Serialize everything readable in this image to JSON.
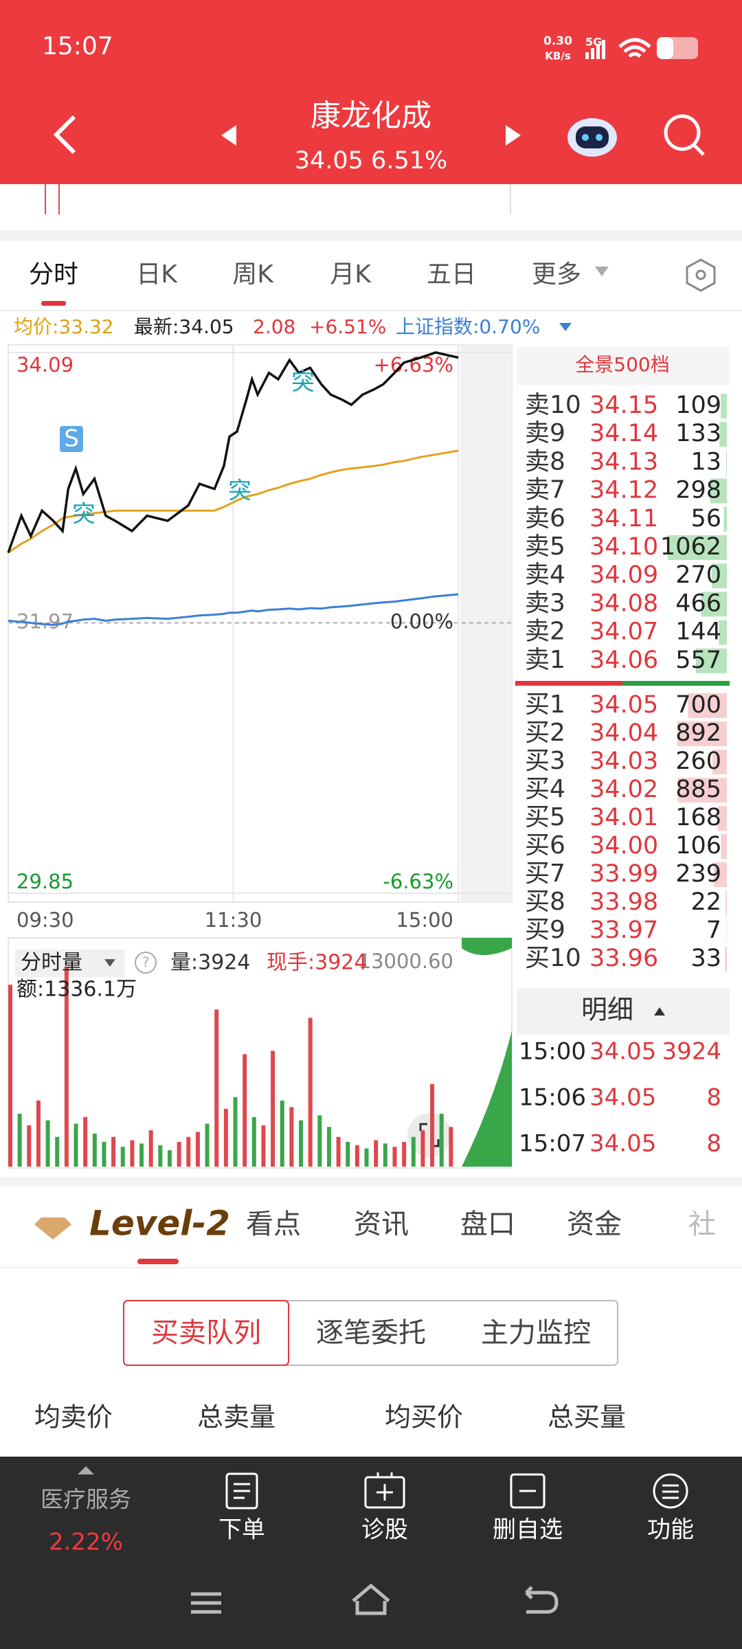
{
  "status_bar": {
    "time": "15:07",
    "speed": "0.30",
    "speed_unit": "KB/s",
    "network": "5G"
  },
  "header": {
    "title": "康龙化成",
    "quote": "34.05 6.51%"
  },
  "chart_tabs": [
    "分时",
    "日K",
    "周K",
    "月K",
    "五日",
    "更多"
  ],
  "info_bar": {
    "avg": "均价:33.32",
    "latest": "最新:34.05",
    "change": "2.08",
    "change_pct": "+6.51%",
    "index": "上证指数:0.70%"
  },
  "chart_data": [
    {
      "type": "line",
      "x": [
        0,
        7,
        12,
        18,
        24,
        29,
        32,
        36,
        40,
        46,
        52,
        57,
        66,
        74,
        85,
        96,
        102,
        110,
        115,
        118,
        122,
        127,
        130,
        133,
        139,
        144,
        150,
        155,
        161,
        167,
        172,
        178,
        183,
        189,
        195,
        200,
        206,
        211,
        220,
        228,
        240
      ],
      "series": [
        {
          "color": "#111111",
          "values": [
            32.52,
            32.81,
            32.65,
            32.85,
            32.77,
            32.69,
            33.02,
            33.18,
            32.98,
            33.1,
            32.81,
            32.77,
            32.69,
            32.81,
            32.77,
            32.89,
            33.06,
            33.02,
            33.2,
            33.43,
            33.47,
            33.72,
            33.88,
            33.76,
            33.93,
            33.88,
            34.03,
            33.93,
            33.97,
            33.84,
            33.76,
            33.72,
            33.68,
            33.76,
            33.8,
            33.84,
            33.93,
            34.01,
            34.05,
            34.09,
            34.05
          ]
        },
        {
          "color": "#e3a21a",
          "values": [
            32.52,
            32.59,
            32.63,
            32.69,
            32.74,
            32.79,
            32.8,
            32.81,
            32.82,
            32.83,
            32.84,
            32.85,
            32.85,
            32.85,
            32.85,
            32.85,
            32.85,
            32.85,
            32.88,
            32.9,
            32.93,
            32.96,
            32.97,
            32.98,
            33.01,
            33.03,
            33.06,
            33.08,
            33.1,
            33.13,
            33.15,
            33.17,
            33.18,
            33.19,
            33.2,
            33.21,
            33.23,
            33.24,
            33.27,
            33.29,
            33.32
          ]
        },
        {
          "color": "#3b7fd6",
          "axis": "y2",
          "values": [
            0.05,
            0.02,
            0.0,
            -0.03,
            -0.05,
            -0.02,
            0.03,
            0.05,
            0.08,
            0.1,
            0.05,
            0.08,
            0.1,
            0.12,
            0.1,
            0.15,
            0.18,
            0.2,
            0.22,
            0.25,
            0.25,
            0.28,
            0.3,
            0.28,
            0.32,
            0.33,
            0.35,
            0.33,
            0.36,
            0.35,
            0.38,
            0.4,
            0.42,
            0.45,
            0.48,
            0.5,
            0.52,
            0.55,
            0.6,
            0.65,
            0.7
          ]
        }
      ],
      "xlim": [
        0,
        240
      ],
      "xticks": [
        {
          "value": 0,
          "label": "09:30"
        },
        {
          "value": 120,
          "label": "11:30"
        },
        {
          "value": 240,
          "label": "15:00"
        }
      ],
      "ylim": [
        29.85,
        34.09
      ],
      "yticks": [
        34.09,
        31.97,
        29.85
      ],
      "y2lim": [
        -6.63,
        6.63
      ],
      "y2ticks": [
        {
          "value": 6.63,
          "label": "+6.63%"
        },
        {
          "value": 0,
          "label": "0.00%"
        },
        {
          "value": -6.63,
          "label": "-6.63%"
        }
      ],
      "grid": true,
      "annotations": [
        "S",
        "突",
        "突",
        "突"
      ]
    },
    {
      "type": "bar",
      "title": "分时量",
      "volume": "量:3924",
      "last": "现手:3924",
      "amount": "额:1336.1万",
      "x": [
        0,
        5,
        10,
        15,
        20,
        25,
        30,
        35,
        40,
        45,
        50,
        55,
        60,
        65,
        70,
        75,
        80,
        85,
        90,
        95,
        100,
        105,
        110,
        115,
        120,
        125,
        130,
        135,
        140,
        145,
        150,
        155,
        160,
        165,
        170,
        175,
        180,
        185,
        190,
        195,
        200,
        205,
        210,
        215,
        220,
        225,
        230,
        235
      ],
      "values": [
        11000,
        3200,
        2500,
        4000,
        2800,
        1800,
        12000,
        2600,
        3000,
        2000,
        1500,
        1800,
        1200,
        1600,
        1400,
        2200,
        1300,
        1000,
        1500,
        1800,
        2100,
        2600,
        9500,
        3500,
        4200,
        6800,
        3000,
        2500,
        7000,
        4000,
        3600,
        2800,
        9000,
        3100,
        2400,
        1800,
        1500,
        1300,
        1100,
        1600,
        1400,
        1200,
        1500,
        1800,
        2200,
        5000,
        3200,
        2400
      ],
      "colors": [
        "#e0474c",
        "#3aa64a",
        "#e0474c",
        "#e0474c",
        "#3aa64a",
        "#3aa64a",
        "#e0474c",
        "#3aa64a",
        "#e0474c",
        "#3aa64a",
        "#3aa64a",
        "#e0474c",
        "#3aa64a",
        "#e0474c",
        "#3aa64a",
        "#e0474c",
        "#3aa64a",
        "#3aa64a",
        "#e0474c",
        "#e0474c",
        "#e0474c",
        "#3aa64a",
        "#e0474c",
        "#e0474c",
        "#3aa64a",
        "#e0474c",
        "#3aa64a",
        "#e0474c",
        "#e0474c",
        "#3aa64a",
        "#e0474c",
        "#3aa64a",
        "#e0474c",
        "#3aa64a",
        "#3aa64a",
        "#e0474c",
        "#3aa64a",
        "#e0474c",
        "#3aa64a",
        "#e0474c",
        "#3aa64a",
        "#e0474c",
        "#e0474c",
        "#3aa64a",
        "#e0474c",
        "#e0474c",
        "#3aa64a",
        "#e0474c"
      ],
      "xlim": [
        0,
        240
      ],
      "ylim": [
        0,
        13000.6
      ],
      "yticks": [
        {
          "value": 13000.6,
          "label": "13000.60"
        }
      ]
    }
  ],
  "order_book": {
    "title": "全景500档",
    "asks": [
      {
        "label": "卖10",
        "price": "34.15",
        "volume": 109
      },
      {
        "label": "卖9",
        "price": "34.14",
        "volume": 133
      },
      {
        "label": "卖8",
        "price": "34.13",
        "volume": 13
      },
      {
        "label": "卖7",
        "price": "34.12",
        "volume": 298
      },
      {
        "label": "卖6",
        "price": "34.11",
        "volume": 56
      },
      {
        "label": "卖5",
        "price": "34.10",
        "volume": 1062
      },
      {
        "label": "卖4",
        "price": "34.09",
        "volume": 270
      },
      {
        "label": "卖3",
        "price": "34.08",
        "volume": 466
      },
      {
        "label": "卖2",
        "price": "34.07",
        "volume": 144
      },
      {
        "label": "卖1",
        "price": "34.06",
        "volume": 557
      }
    ],
    "bids": [
      {
        "label": "买1",
        "price": "34.05",
        "volume": 700
      },
      {
        "label": "买2",
        "price": "34.04",
        "volume": 892
      },
      {
        "label": "买3",
        "price": "34.03",
        "volume": 260
      },
      {
        "label": "买4",
        "price": "34.02",
        "volume": 885
      },
      {
        "label": "买5",
        "price": "34.01",
        "volume": 168
      },
      {
        "label": "买6",
        "price": "34.00",
        "volume": 106
      },
      {
        "label": "买7",
        "price": "33.99",
        "volume": 239
      },
      {
        "label": "买8",
        "price": "33.98",
        "volume": 22
      },
      {
        "label": "买9",
        "price": "33.97",
        "volume": 7
      },
      {
        "label": "买10",
        "price": "33.96",
        "volume": 33
      }
    ]
  },
  "trades": {
    "title": "明细",
    "rows": [
      {
        "time": "15:00",
        "price": "34.05",
        "volume": 3924
      },
      {
        "time": "15:06",
        "price": "34.05",
        "volume": 8
      },
      {
        "time": "15:07",
        "price": "34.05",
        "volume": 8
      }
    ]
  },
  "detail_tabs": [
    "Level-2",
    "看点",
    "资讯",
    "盘口",
    "资金",
    "社"
  ],
  "segments": [
    "买卖队列",
    "逐笔委托",
    "主力监控"
  ],
  "columns": [
    "均卖价",
    "总卖量",
    "均买价",
    "总买量"
  ],
  "bottom_bar": {
    "sector": "医疗服务",
    "sector_change": "2.22%",
    "actions": [
      "下单",
      "诊股",
      "删自选",
      "功能"
    ]
  }
}
